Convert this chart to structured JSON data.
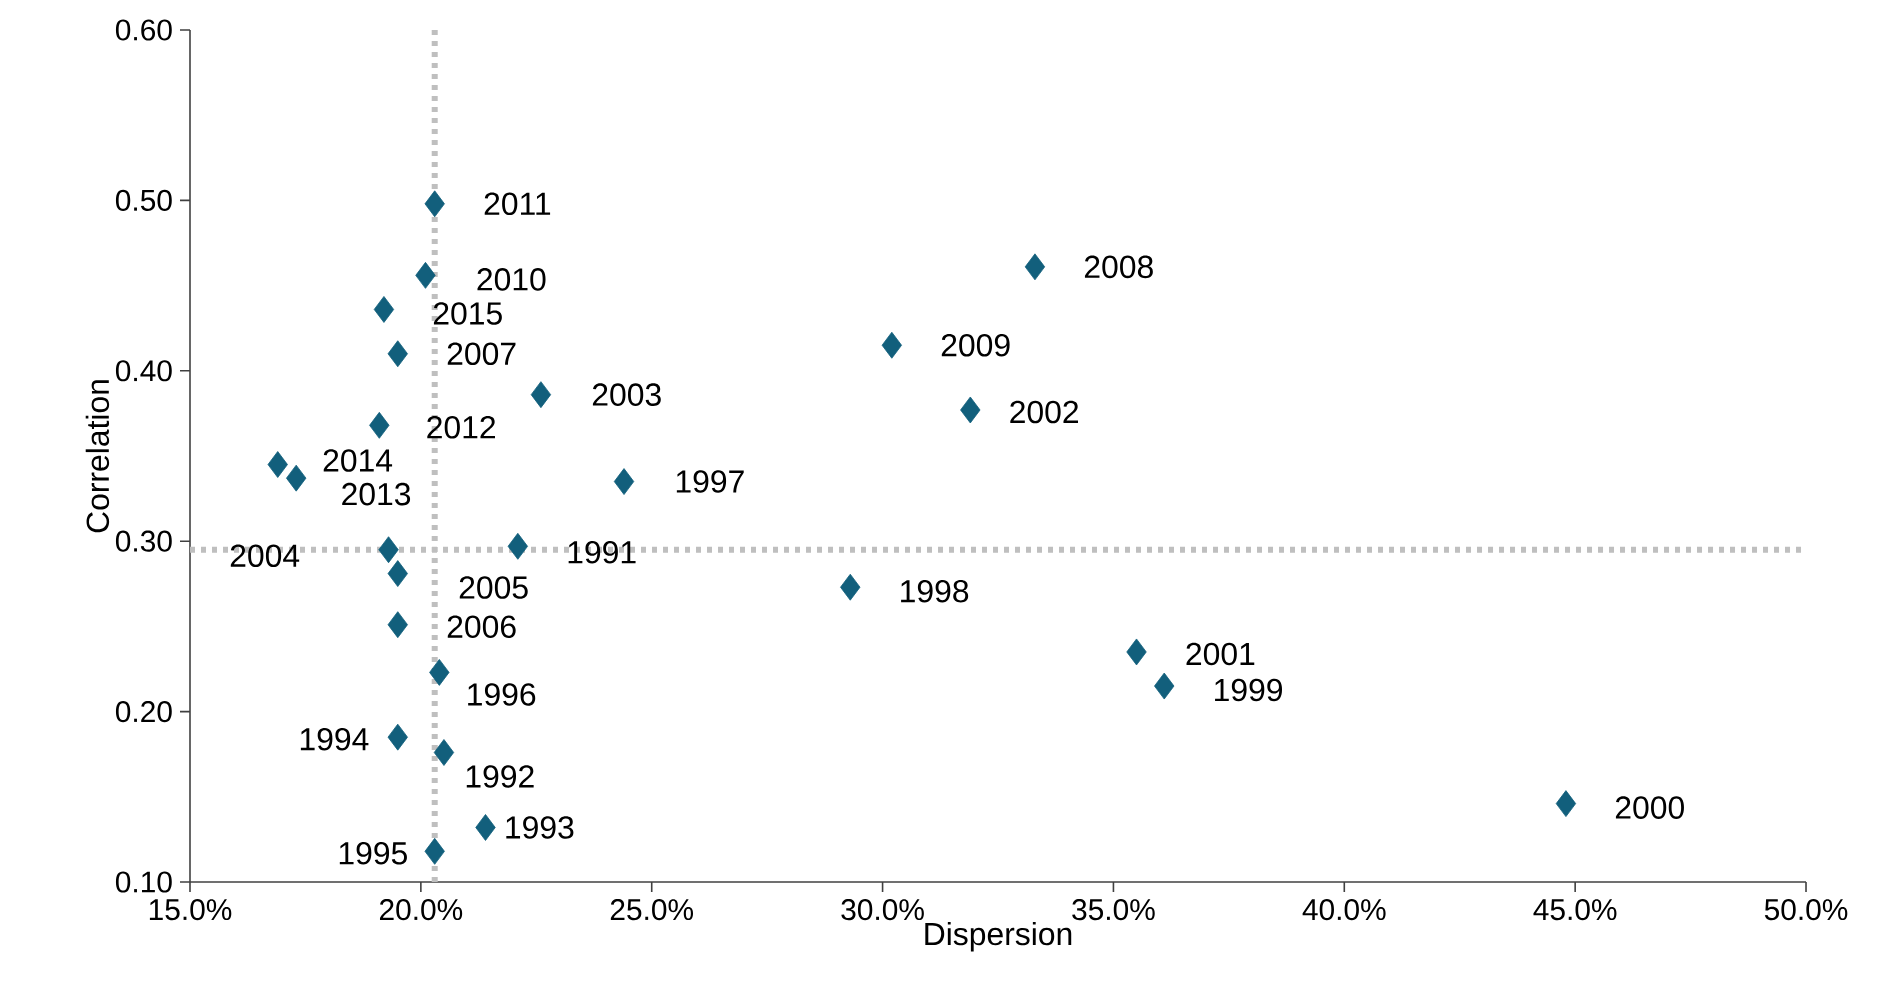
{
  "chart_data": {
    "type": "scatter",
    "xlabel": "Dispersion",
    "ylabel": "Correlation",
    "xlim": [
      15,
      50
    ],
    "ylim": [
      0.1,
      0.6
    ],
    "xticks": [
      {
        "value": 15,
        "label": "15.0%"
      },
      {
        "value": 20,
        "label": "20.0%"
      },
      {
        "value": 25,
        "label": "25.0%"
      },
      {
        "value": 30,
        "label": "30.0%"
      },
      {
        "value": 35,
        "label": "35.0%"
      },
      {
        "value": 40,
        "label": "40.0%"
      },
      {
        "value": 45,
        "label": "45.0%"
      },
      {
        "value": 50,
        "label": "50.0%"
      }
    ],
    "yticks": [
      {
        "value": 0.1,
        "label": "0.10"
      },
      {
        "value": 0.2,
        "label": "0.20"
      },
      {
        "value": 0.3,
        "label": "0.30"
      },
      {
        "value": 0.4,
        "label": "0.40"
      },
      {
        "value": 0.5,
        "label": "0.50"
      },
      {
        "value": 0.6,
        "label": "0.60"
      }
    ],
    "marker": "diamond",
    "series": [
      {
        "color": "#125f7c",
        "x": [
          20.3,
          20.1,
          19.2,
          19.5,
          22.6,
          33.3,
          30.2,
          31.9,
          19.1,
          16.9,
          17.3,
          24.4,
          22.1,
          19.3,
          19.5,
          29.3,
          19.5,
          35.5,
          20.4,
          36.1,
          19.5,
          20.5,
          44.8,
          21.4,
          20.3
        ],
        "values": [
          0.498,
          0.456,
          0.436,
          0.41,
          0.386,
          0.461,
          0.415,
          0.377,
          0.368,
          0.345,
          0.337,
          0.335,
          0.297,
          0.295,
          0.281,
          0.273,
          0.251,
          0.235,
          0.223,
          0.215,
          0.185,
          0.176,
          0.146,
          0.132,
          0.118
        ]
      }
    ],
    "ref_lines": [
      {
        "axis": "x",
        "value": 20.3,
        "color": "#bfbfbf",
        "line_style": "dotted"
      },
      {
        "axis": "y",
        "value": 0.295,
        "color": "#bfbfbf",
        "line_style": "dotted"
      }
    ],
    "annotations": [
      {
        "text": "2011",
        "x": 20.3,
        "y": 0.498
      },
      {
        "text": "2010",
        "x": 20.1,
        "y": 0.456
      },
      {
        "text": "2015",
        "x": 19.2,
        "y": 0.436
      },
      {
        "text": "2007",
        "x": 19.5,
        "y": 0.41
      },
      {
        "text": "2003",
        "x": 22.6,
        "y": 0.386
      },
      {
        "text": "2008",
        "x": 33.3,
        "y": 0.461
      },
      {
        "text": "2009",
        "x": 30.2,
        "y": 0.415
      },
      {
        "text": "2002",
        "x": 31.9,
        "y": 0.377
      },
      {
        "text": "2012",
        "x": 19.1,
        "y": 0.368
      },
      {
        "text": "2014",
        "x": 16.9,
        "y": 0.345
      },
      {
        "text": "2013",
        "x": 17.3,
        "y": 0.337
      },
      {
        "text": "1997",
        "x": 24.4,
        "y": 0.335
      },
      {
        "text": "1991",
        "x": 22.1,
        "y": 0.297
      },
      {
        "text": "2004",
        "x": 19.3,
        "y": 0.295
      },
      {
        "text": "2005",
        "x": 19.5,
        "y": 0.281
      },
      {
        "text": "1998",
        "x": 29.3,
        "y": 0.273
      },
      {
        "text": "2006",
        "x": 19.5,
        "y": 0.251
      },
      {
        "text": "2001",
        "x": 35.5,
        "y": 0.235
      },
      {
        "text": "1996",
        "x": 20.4,
        "y": 0.223
      },
      {
        "text": "1999",
        "x": 36.1,
        "y": 0.215
      },
      {
        "text": "1994",
        "x": 19.5,
        "y": 0.185
      },
      {
        "text": "1992",
        "x": 20.5,
        "y": 0.176
      },
      {
        "text": "2000",
        "x": 44.8,
        "y": 0.146
      },
      {
        "text": "1993",
        "x": 21.4,
        "y": 0.132
      },
      {
        "text": "1995",
        "x": 20.3,
        "y": 0.118
      }
    ]
  }
}
